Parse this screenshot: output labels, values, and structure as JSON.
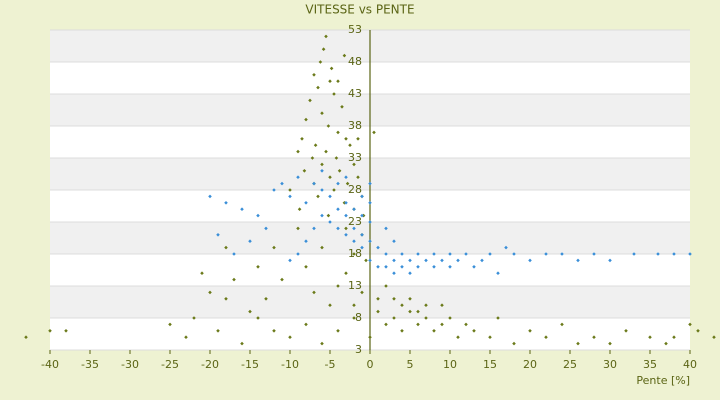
{
  "chart_data": {
    "type": "scatter",
    "title": "VITESSE vs PENTE",
    "x_label": "Pente [%]",
    "xlim": [
      -40,
      40
    ],
    "xticks": [
      -40,
      -35,
      -30,
      -25,
      -20,
      -15,
      -10,
      -5,
      0,
      5,
      10,
      15,
      20,
      25,
      30,
      35,
      40
    ],
    "ylim": [
      3,
      53
    ],
    "yticks": [
      3,
      8,
      13,
      18,
      23,
      28,
      33,
      38,
      43,
      48,
      53
    ],
    "grid": true,
    "series": [
      {
        "color": "#6b7a1a",
        "x": [
          -5.5,
          -5.8,
          -6.2,
          -4.8,
          -7,
          -5,
          -6.5,
          -4.5,
          -7.5,
          -3.5,
          -6,
          -8,
          -5.2,
          -4,
          -8.5,
          -3,
          -6.8,
          -2.5,
          -9,
          -5.5,
          -4.2,
          -7.2,
          -2,
          -6,
          -8.2,
          -3.8,
          -1.5,
          -5,
          -7,
          -2.8,
          -10,
          -4.5,
          -1,
          -6.5,
          -3.2,
          -8.8,
          -2,
          -5.2,
          -0.8,
          -1.5,
          0.5,
          -4,
          -3.2,
          -9,
          -3,
          -1,
          -12,
          -6,
          -2,
          -0.5,
          -14,
          -8,
          -3,
          -17,
          -11,
          -4,
          -1,
          -20,
          -7,
          2,
          -18,
          -13,
          -5,
          -2,
          1,
          4,
          6,
          -25,
          -23,
          -19,
          -16,
          -14,
          -12,
          -10,
          -8,
          -6,
          -4,
          -2,
          0,
          1,
          2,
          3,
          4,
          5,
          6,
          7,
          8,
          9,
          10,
          11,
          12,
          13,
          15,
          16,
          18,
          20,
          22,
          24,
          26,
          28,
          30,
          32,
          35,
          37,
          38,
          40,
          41,
          43,
          -40,
          -43,
          -38,
          3,
          5,
          7,
          9,
          -18,
          -21,
          -22,
          -15
        ],
        "values": [
          52,
          50,
          48,
          47,
          46,
          45,
          44,
          43,
          42,
          41,
          40,
          39,
          38,
          37,
          36,
          36,
          35,
          35,
          34,
          34,
          33,
          33,
          32,
          32,
          31,
          31,
          30,
          30,
          29,
          29,
          28,
          28,
          27,
          27,
          26,
          25,
          25,
          24,
          24,
          36,
          37,
          45,
          49,
          22,
          22,
          21,
          19,
          19,
          18,
          17,
          16,
          16,
          15,
          14,
          14,
          13,
          12,
          12,
          12,
          13,
          11,
          11,
          10,
          10,
          11,
          10,
          9,
          7,
          5,
          6,
          4,
          8,
          6,
          5,
          7,
          4,
          6,
          8,
          5,
          9,
          7,
          8,
          6,
          9,
          7,
          8,
          6,
          7,
          8,
          5,
          7,
          6,
          5,
          8,
          4,
          6,
          5,
          7,
          4,
          5,
          4,
          6,
          5,
          4,
          5,
          7,
          6,
          5,
          6,
          5,
          6,
          11,
          11,
          10,
          10,
          19,
          15,
          8,
          9
        ]
      },
      {
        "color": "#3a8fd8",
        "x": [
          -20,
          -18,
          -16,
          -14,
          -12,
          -11,
          -10,
          -9,
          -8,
          -7,
          -6,
          -5,
          -4,
          -3,
          -2,
          -1,
          -6,
          -5,
          -4,
          -3,
          -2,
          -1,
          -7,
          -8,
          -9,
          -10,
          -4,
          -3,
          -2,
          -1,
          -13,
          -15,
          -17,
          -19,
          0,
          0,
          0,
          0,
          0,
          1,
          1,
          2,
          2,
          3,
          3,
          4,
          4,
          5,
          5,
          6,
          6,
          7,
          8,
          8,
          9,
          10,
          10,
          11,
          12,
          13,
          14,
          15,
          16,
          17,
          18,
          20,
          22,
          24,
          26,
          28,
          30,
          33,
          36,
          38,
          40,
          2,
          3,
          -6,
          -3,
          -1
        ],
        "values": [
          27,
          26,
          25,
          24,
          28,
          29,
          27,
          30,
          26,
          29,
          28,
          27,
          29,
          26,
          25,
          24,
          24,
          23,
          22,
          21,
          20,
          19,
          22,
          20,
          18,
          17,
          25,
          24,
          22,
          21,
          22,
          20,
          18,
          21,
          29,
          26,
          23,
          20,
          17,
          19,
          16,
          18,
          16,
          17,
          15,
          18,
          16,
          17,
          15,
          18,
          16,
          17,
          18,
          16,
          17,
          18,
          16,
          17,
          18,
          16,
          17,
          18,
          15,
          19,
          18,
          17,
          18,
          18,
          17,
          18,
          17,
          18,
          18,
          18,
          18,
          22,
          20,
          31,
          30,
          27
        ]
      }
    ]
  }
}
